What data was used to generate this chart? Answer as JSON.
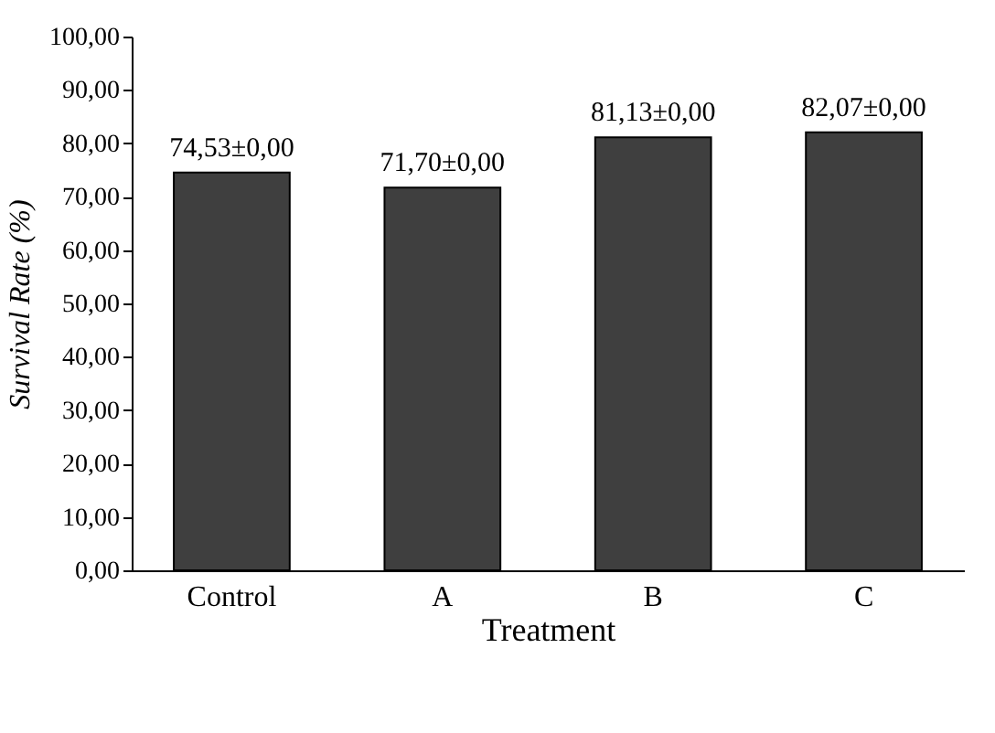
{
  "chart_data": {
    "type": "bar",
    "xlabel": "Treatment",
    "ylabel": "Survival Rate (%)",
    "categories": [
      "Control",
      "A",
      "B",
      "C"
    ],
    "values": [
      74.53,
      71.7,
      81.13,
      82.07
    ],
    "value_labels": [
      "74,53±0,00",
      "71,70±0,00",
      "81,13±0,00",
      "82,07±0,00"
    ],
    "color": "#3f3f3f",
    "ylim": [
      0,
      100
    ],
    "yticks": [
      {
        "value": 0,
        "label": "0,00"
      },
      {
        "value": 10,
        "label": "10,00"
      },
      {
        "value": 20,
        "label": "20,00"
      },
      {
        "value": 30,
        "label": "30,00"
      },
      {
        "value": 40,
        "label": "40,00"
      },
      {
        "value": 50,
        "label": "50,00"
      },
      {
        "value": 60,
        "label": "60,00"
      },
      {
        "value": 70,
        "label": "70,00"
      },
      {
        "value": 80,
        "label": "80,00"
      },
      {
        "value": 90,
        "label": "90,00"
      },
      {
        "value": 100,
        "label": "100,00"
      }
    ],
    "grid": false
  }
}
